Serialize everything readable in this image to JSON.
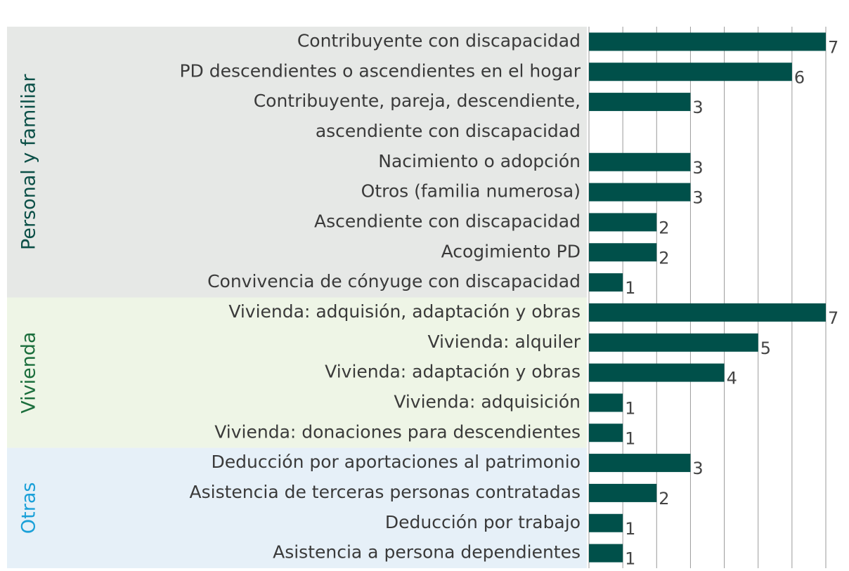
{
  "chart_data": {
    "type": "bar",
    "orientation": "horizontal",
    "color": "#00504a",
    "xlim": [
      0,
      7
    ],
    "xticks": [
      0,
      1,
      2,
      3,
      4,
      5,
      6,
      7
    ],
    "grid": true,
    "groups": [
      {
        "name": "Personal y familiar",
        "color": "#0b4f47",
        "background": "#e6e8e6",
        "categories": [
          "Contribuyente con discapacidad",
          "PD descendientes o ascendientes en el hogar",
          [
            "Contribuyente, pareja, descendiente,",
            "ascendiente con discapacidad"
          ],
          "Nacimiento o adopción",
          "Otros (familia numerosa)",
          "Ascendiente con discapacidad",
          "Acogimiento PD",
          "Convivencia de cónyuge con discapacidad"
        ],
        "values": [
          7,
          6,
          3,
          3,
          3,
          2,
          2,
          1
        ]
      },
      {
        "name": "Vivienda",
        "color": "#1b6e3c",
        "background": "#eef5e6",
        "categories": [
          "Vivienda: adquisión, adaptación y obras",
          "Vivienda: alquiler",
          "Vivienda: adaptación y obras",
          "Vivienda: adquisición",
          "Vivienda: donaciones para descendientes"
        ],
        "values": [
          7,
          5,
          4,
          1,
          1
        ]
      },
      {
        "name": "Otras",
        "color": "#1aa0d8",
        "background": "#e6f0f8",
        "categories": [
          "Deducción por aportaciones al patrimonio",
          "Asistencia de terceras personas contratadas",
          "Deducción por trabajo",
          "Asistencia a persona dependientes"
        ],
        "values": [
          3,
          2,
          1,
          1
        ]
      }
    ]
  }
}
